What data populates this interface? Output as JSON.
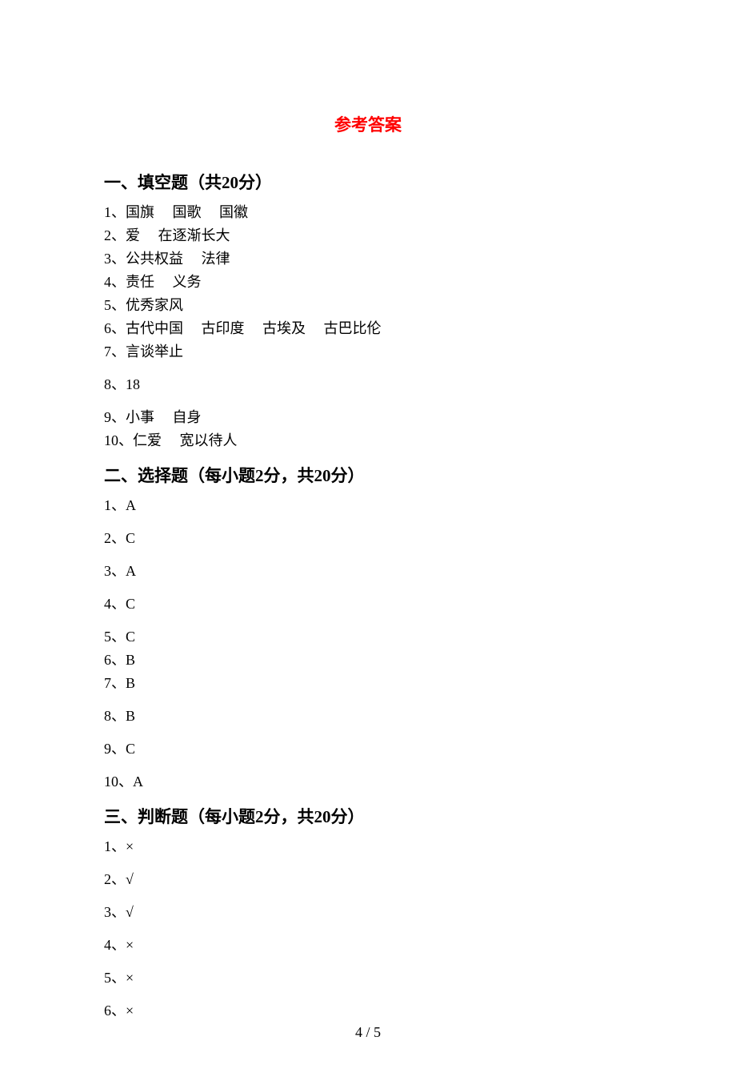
{
  "title": "参考答案",
  "sections": {
    "s1": {
      "heading": "一、填空题（共20分）",
      "items": [
        "1、国旗     国歌     国徽",
        "2、爱     在逐渐长大",
        "3、公共权益     法律",
        "4、责任     义务",
        "5、优秀家风",
        "6、古代中国     古印度     古埃及     古巴比伦",
        "7、言谈举止",
        "8、18",
        "9、小事     自身",
        "10、仁爱     宽以待人"
      ]
    },
    "s2": {
      "heading": "二、选择题（每小题2分，共20分）",
      "items": [
        "1、A",
        "2、C",
        "3、A",
        "4、C",
        "5、C",
        "6、B",
        "7、B",
        "8、B",
        "9、C",
        "10、A"
      ]
    },
    "s3": {
      "heading": "三、判断题（每小题2分，共20分）",
      "items": [
        "1、×",
        "2、√",
        "3、√",
        "4、×",
        "5、×",
        "6、×"
      ]
    }
  },
  "page_number": "4 / 5",
  "colors": {
    "title_color": "#ff0000",
    "text_color": "#000000",
    "background_color": "#ffffff"
  },
  "typography": {
    "title_fontsize": 21,
    "heading_fontsize": 21,
    "body_fontsize": 18,
    "page_number_fontsize": 18
  }
}
